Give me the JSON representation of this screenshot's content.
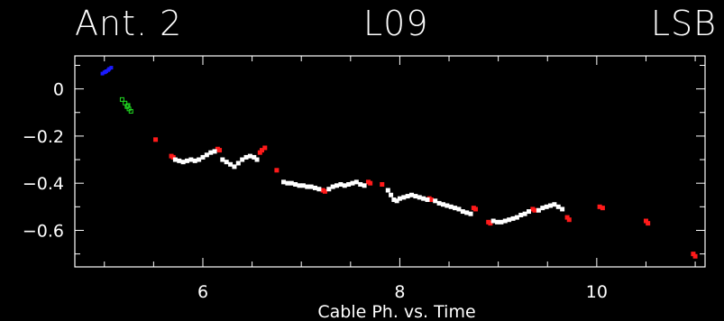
{
  "header": {
    "left": "Ant. 2",
    "middle": "L09",
    "right": "LSB"
  },
  "chart_data": {
    "type": "scatter",
    "xlabel": "Cable Ph.  vs.  Time",
    "ylabel": "",
    "xlim": [
      4.7,
      11.1
    ],
    "ylim": [
      -0.755,
      0.14
    ],
    "xticks": [
      6,
      8,
      10
    ],
    "yticks": [
      0,
      -0.2,
      -0.4,
      -0.6
    ],
    "ytick_labels": [
      "0",
      "−0.2",
      "−0.4",
      "−0.6"
    ],
    "grid": false,
    "series": [
      {
        "color": "#1a1aff",
        "marker": "filled",
        "size": 4,
        "points": [
          [
            4.98,
            0.065
          ],
          [
            5.0,
            0.07
          ],
          [
            5.02,
            0.075
          ],
          [
            5.04,
            0.08
          ],
          [
            5.05,
            0.085
          ],
          [
            5.07,
            0.09
          ],
          [
            5.01,
            0.072
          ]
        ]
      },
      {
        "color": "#22dd22",
        "marker": "hollow",
        "size": 4,
        "points": [
          [
            5.18,
            -0.045
          ],
          [
            5.21,
            -0.06
          ],
          [
            5.23,
            -0.075
          ],
          [
            5.25,
            -0.085
          ],
          [
            5.27,
            -0.095
          ],
          [
            5.24,
            -0.07
          ]
        ]
      },
      {
        "color": "#ff1a1a",
        "marker": "filled",
        "size": 5,
        "points": [
          [
            5.52,
            -0.215
          ],
          [
            5.68,
            -0.285
          ],
          [
            5.7,
            -0.29
          ],
          [
            6.15,
            -0.255
          ],
          [
            6.17,
            -0.26
          ],
          [
            6.58,
            -0.27
          ],
          [
            6.6,
            -0.26
          ],
          [
            6.63,
            -0.25
          ],
          [
            6.75,
            -0.345
          ],
          [
            7.22,
            -0.43
          ],
          [
            7.24,
            -0.435
          ],
          [
            7.68,
            -0.395
          ],
          [
            7.7,
            -0.4
          ],
          [
            7.82,
            -0.405
          ],
          [
            8.3,
            -0.465
          ],
          [
            8.32,
            -0.47
          ],
          [
            8.75,
            -0.505
          ],
          [
            8.77,
            -0.51
          ],
          [
            8.9,
            -0.565
          ],
          [
            8.92,
            -0.57
          ],
          [
            9.35,
            -0.51
          ],
          [
            9.37,
            -0.515
          ],
          [
            9.7,
            -0.545
          ],
          [
            9.72,
            -0.555
          ],
          [
            10.03,
            -0.5
          ],
          [
            10.06,
            -0.505
          ],
          [
            10.5,
            -0.56
          ],
          [
            10.52,
            -0.57
          ],
          [
            10.98,
            -0.7
          ],
          [
            11.0,
            -0.71
          ]
        ]
      },
      {
        "color": "#ffffff",
        "marker": "filled",
        "size": 5,
        "points": [
          [
            5.72,
            -0.3
          ],
          [
            5.76,
            -0.305
          ],
          [
            5.8,
            -0.31
          ],
          [
            5.84,
            -0.305
          ],
          [
            5.88,
            -0.3
          ],
          [
            5.92,
            -0.305
          ],
          [
            5.96,
            -0.3
          ],
          [
            6.0,
            -0.29
          ],
          [
            6.04,
            -0.28
          ],
          [
            6.08,
            -0.27
          ],
          [
            6.12,
            -0.265
          ],
          [
            6.2,
            -0.3
          ],
          [
            6.24,
            -0.31
          ],
          [
            6.28,
            -0.32
          ],
          [
            6.32,
            -0.33
          ],
          [
            6.36,
            -0.315
          ],
          [
            6.4,
            -0.3
          ],
          [
            6.44,
            -0.29
          ],
          [
            6.48,
            -0.285
          ],
          [
            6.52,
            -0.29
          ],
          [
            6.55,
            -0.3
          ],
          [
            6.82,
            -0.395
          ],
          [
            6.86,
            -0.4
          ],
          [
            6.9,
            -0.4
          ],
          [
            6.94,
            -0.405
          ],
          [
            6.98,
            -0.41
          ],
          [
            7.02,
            -0.41
          ],
          [
            7.06,
            -0.415
          ],
          [
            7.1,
            -0.415
          ],
          [
            7.14,
            -0.42
          ],
          [
            7.18,
            -0.425
          ],
          [
            7.28,
            -0.425
          ],
          [
            7.32,
            -0.415
          ],
          [
            7.36,
            -0.41
          ],
          [
            7.4,
            -0.405
          ],
          [
            7.44,
            -0.41
          ],
          [
            7.48,
            -0.405
          ],
          [
            7.52,
            -0.4
          ],
          [
            7.56,
            -0.395
          ],
          [
            7.6,
            -0.405
          ],
          [
            7.64,
            -0.41
          ],
          [
            7.88,
            -0.43
          ],
          [
            7.91,
            -0.45
          ],
          [
            7.94,
            -0.47
          ],
          [
            7.97,
            -0.475
          ],
          [
            8.0,
            -0.465
          ],
          [
            8.04,
            -0.46
          ],
          [
            8.08,
            -0.455
          ],
          [
            8.12,
            -0.45
          ],
          [
            8.16,
            -0.455
          ],
          [
            8.2,
            -0.46
          ],
          [
            8.24,
            -0.465
          ],
          [
            8.28,
            -0.47
          ],
          [
            8.36,
            -0.475
          ],
          [
            8.4,
            -0.485
          ],
          [
            8.44,
            -0.49
          ],
          [
            8.48,
            -0.495
          ],
          [
            8.52,
            -0.5
          ],
          [
            8.56,
            -0.505
          ],
          [
            8.6,
            -0.51
          ],
          [
            8.64,
            -0.52
          ],
          [
            8.68,
            -0.525
          ],
          [
            8.72,
            -0.53
          ],
          [
            8.95,
            -0.56
          ],
          [
            8.99,
            -0.565
          ],
          [
            9.03,
            -0.565
          ],
          [
            9.07,
            -0.56
          ],
          [
            9.11,
            -0.555
          ],
          [
            9.15,
            -0.55
          ],
          [
            9.19,
            -0.545
          ],
          [
            9.23,
            -0.535
          ],
          [
            9.27,
            -0.53
          ],
          [
            9.31,
            -0.52
          ],
          [
            9.41,
            -0.515
          ],
          [
            9.45,
            -0.505
          ],
          [
            9.49,
            -0.5
          ],
          [
            9.53,
            -0.495
          ],
          [
            9.57,
            -0.49
          ],
          [
            9.61,
            -0.5
          ],
          [
            9.65,
            -0.51
          ]
        ]
      }
    ]
  }
}
